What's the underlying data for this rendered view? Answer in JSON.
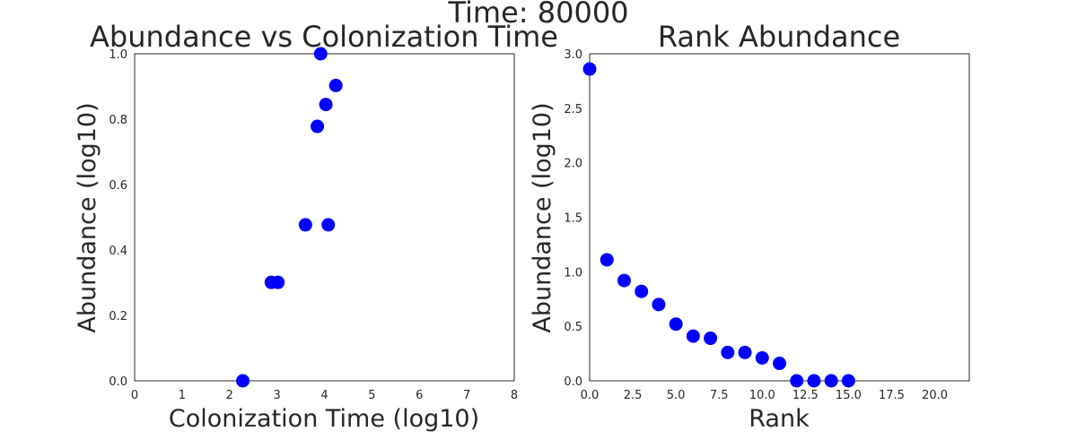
{
  "figure": {
    "suptitle": "Time: 80000"
  },
  "chart_data": [
    {
      "type": "scatter",
      "title": "Abundance vs Colonization Time",
      "xlabel": "Colonization Time (log10)",
      "ylabel": "Abundance (log10)",
      "xlim": [
        0,
        8
      ],
      "ylim": [
        0,
        1
      ],
      "xticks": [
        0,
        1,
        2,
        3,
        4,
        5,
        6,
        7,
        8
      ],
      "xtick_labels": [
        "0",
        "1",
        "2",
        "3",
        "4",
        "5",
        "6",
        "7",
        "8"
      ],
      "yticks": [
        0,
        0.2,
        0.4,
        0.6,
        0.8,
        1.0
      ],
      "ytick_labels": [
        "0.0",
        "0.2",
        "0.4",
        "0.6",
        "0.8",
        "1.0"
      ],
      "grid": false,
      "marker_color": "#0000ff",
      "x": [
        2.28,
        2.88,
        3.02,
        3.6,
        3.85,
        3.92,
        4.03,
        4.08,
        4.24
      ],
      "y": [
        0.0,
        0.301,
        0.301,
        0.477,
        0.778,
        1.0,
        0.845,
        0.477,
        0.903
      ]
    },
    {
      "type": "scatter",
      "title": "Rank Abundance",
      "xlabel": "Rank",
      "ylabel": "Abundance (log10)",
      "xlim": [
        0,
        22
      ],
      "ylim": [
        0,
        3
      ],
      "xticks": [
        0,
        2.5,
        5,
        7.5,
        10,
        12.5,
        15,
        17.5,
        20
      ],
      "xtick_labels": [
        "0.0",
        "2.5",
        "5.0",
        "7.5",
        "10.0",
        "12.5",
        "15.0",
        "17.5",
        "20.0"
      ],
      "yticks": [
        0,
        0.5,
        1.0,
        1.5,
        2.0,
        2.5,
        3.0
      ],
      "ytick_labels": [
        "0.0",
        "0.5",
        "1.0",
        "1.5",
        "2.0",
        "2.5",
        "3.0"
      ],
      "grid": false,
      "marker_color": "#0000ff",
      "x": [
        0,
        1,
        2,
        3,
        4,
        5,
        6,
        7,
        8,
        9,
        10,
        11,
        12,
        13,
        14,
        15
      ],
      "y": [
        2.86,
        1.11,
        0.92,
        0.82,
        0.7,
        0.52,
        0.41,
        0.39,
        0.26,
        0.26,
        0.21,
        0.16,
        0.0,
        0.0,
        0.0,
        0.0
      ]
    }
  ]
}
